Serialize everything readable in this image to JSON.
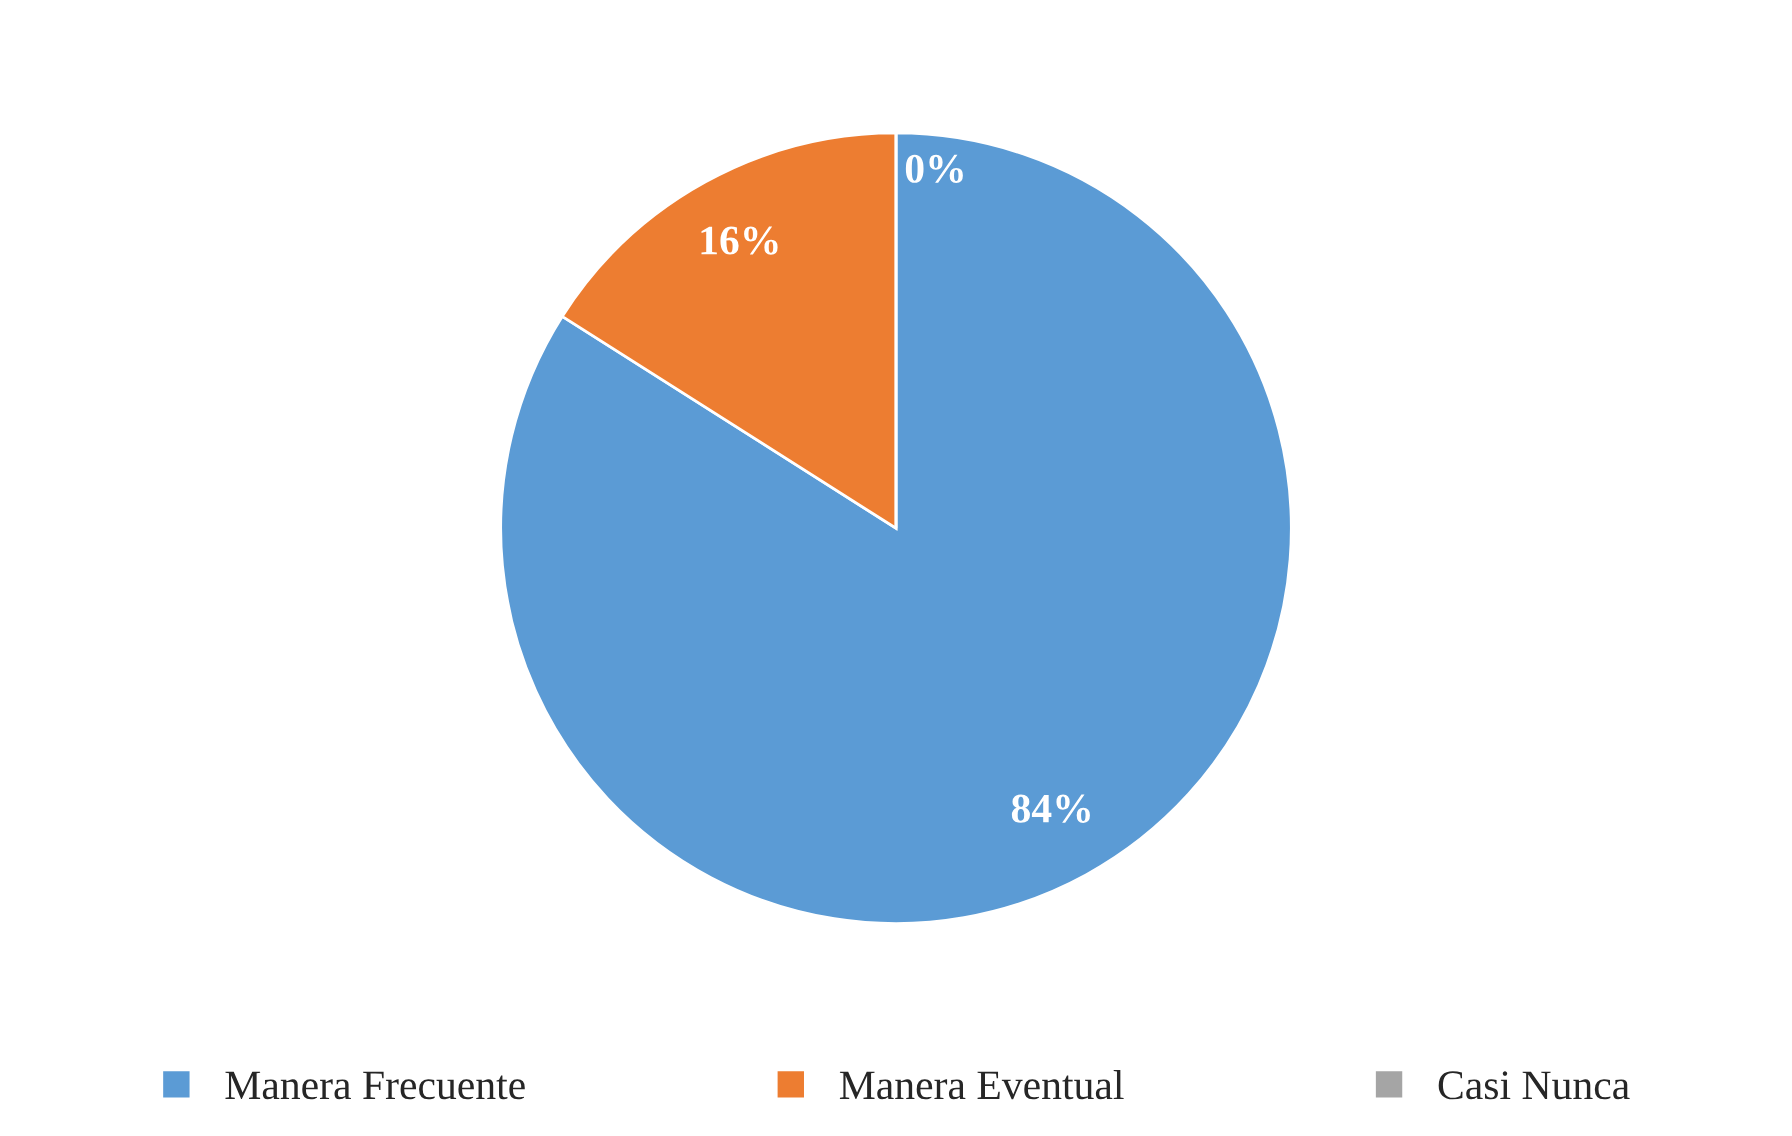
{
  "chart_data": {
    "type": "pie",
    "categories": [
      "Manera Frecuente",
      "Manera Eventual",
      "Casi Nunca"
    ],
    "values": [
      84,
      16,
      0
    ],
    "colors": [
      "#5b9bd5",
      "#ed7d31",
      "#a5a5a5"
    ],
    "value_labels": [
      "84%",
      "16%",
      "0%"
    ],
    "legend": "bottom"
  }
}
